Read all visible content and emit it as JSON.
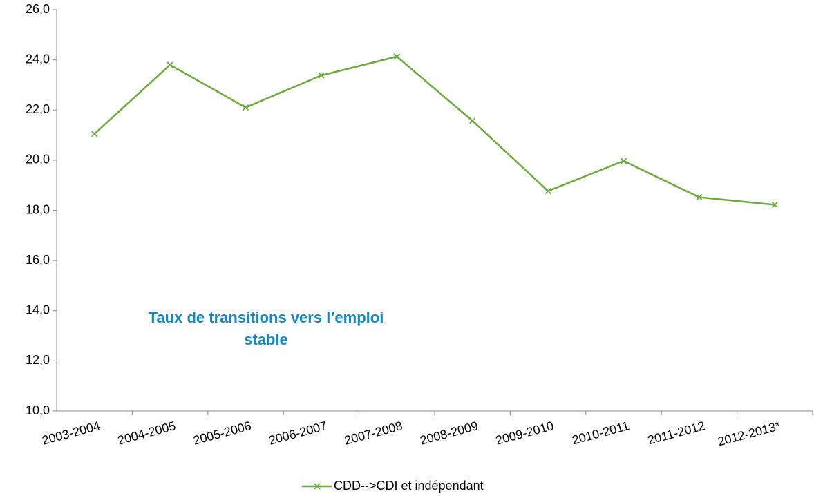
{
  "chart_data": {
    "type": "line",
    "annotation": [
      "Taux de transitions vers l’emploi",
      "stable"
    ],
    "categories": [
      "2003-2004",
      "2004-2005",
      "2005-2006",
      "2006-2007",
      "2007-2008",
      "2008-2009",
      "2009-2010",
      "2010-2011",
      "2011-2012",
      "2012-2013*"
    ],
    "series": [
      {
        "name": "CDD-->CDI et indépendant",
        "color": "#6aac37",
        "values": [
          21.05,
          23.8,
          22.1,
          23.38,
          24.13,
          21.57,
          18.77,
          19.97,
          18.52,
          18.22
        ]
      }
    ],
    "ylim": [
      10,
      26
    ],
    "yticks": [
      {
        "value": 10,
        "label": "10,0"
      },
      {
        "value": 12,
        "label": "12,0"
      },
      {
        "value": 14,
        "label": "14,0"
      },
      {
        "value": 16,
        "label": "16,0"
      },
      {
        "value": 18,
        "label": "18,0"
      },
      {
        "value": 20,
        "label": "20,0"
      },
      {
        "value": 22,
        "label": "22,0"
      },
      {
        "value": 24,
        "label": "24,0"
      },
      {
        "value": 26,
        "label": "26,0"
      }
    ],
    "legend": "bottom"
  }
}
